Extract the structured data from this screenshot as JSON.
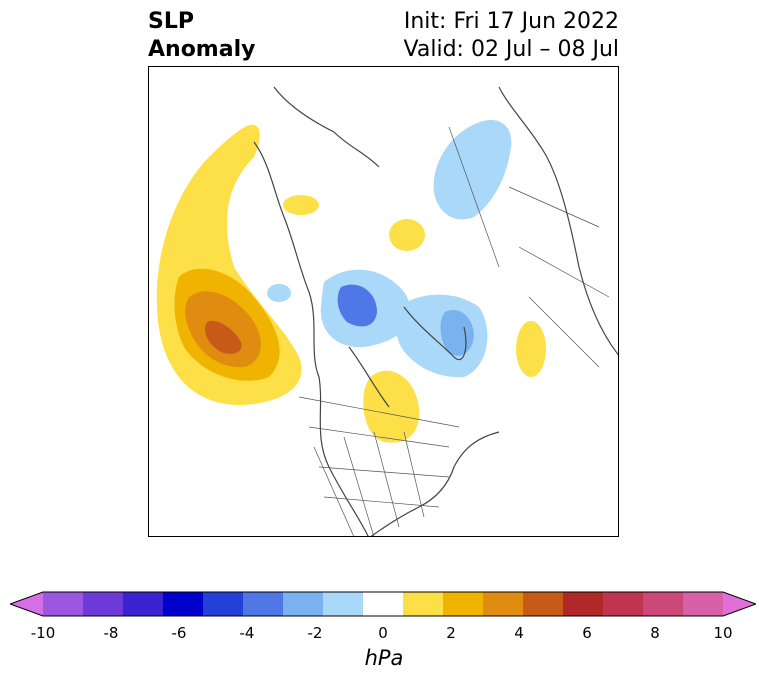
{
  "header": {
    "title_line1": "SLP",
    "title_line2": "Anomaly",
    "init": "Init: Fri 17 Jun 2022",
    "valid": "Valid: 02 Jul – 08 Jul"
  },
  "colorbar": {
    "units": "hPa",
    "ticks": [
      "-10",
      "-8",
      "-6",
      "-4",
      "-2",
      "0",
      "2",
      "4",
      "6",
      "8",
      "10"
    ],
    "colors": [
      "#d46fe6",
      "#9b57e0",
      "#6d3ad9",
      "#3a22d0",
      "#0000cc",
      "#2440d8",
      "#4f77e6",
      "#7ab2f0",
      "#aad8f8",
      "#ffffff",
      "#fde048",
      "#f0b400",
      "#e08c10",
      "#c85a18",
      "#b02828",
      "#c03450",
      "#cc4878",
      "#d860a8",
      "#e070d8"
    ],
    "extend_low_color": "#d46fe6",
    "extend_high_color": "#e070d8"
  },
  "map": {
    "projection": "north-polar-stereographic",
    "region": "North America / Arctic",
    "anomalies": [
      {
        "name": "north-pacific-high",
        "sign": "positive",
        "peak_hpa": 6
      },
      {
        "name": "greenland-low",
        "sign": "negative",
        "peak_hpa": -4
      },
      {
        "name": "arctic-low",
        "sign": "negative",
        "peak_hpa": -4
      },
      {
        "name": "siberia-low",
        "sign": "negative",
        "peak_hpa": -2
      },
      {
        "name": "hudson-bay-high",
        "sign": "positive",
        "peak_hpa": 2
      },
      {
        "name": "barents-high",
        "sign": "positive",
        "peak_hpa": 2
      }
    ]
  }
}
